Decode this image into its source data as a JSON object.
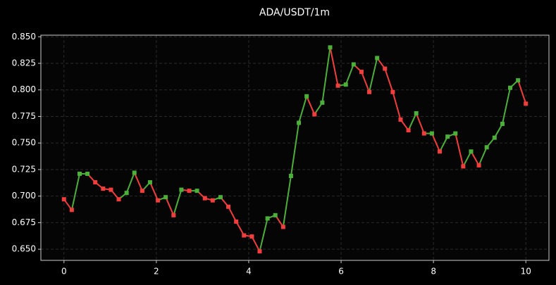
{
  "chart_data": {
    "type": "line",
    "title": "ADA/USDT/1m",
    "x": [
      0,
      0.169,
      0.339,
      0.508,
      0.678,
      0.847,
      1.017,
      1.186,
      1.356,
      1.525,
      1.695,
      1.864,
      2.034,
      2.203,
      2.373,
      2.542,
      2.712,
      2.881,
      3.051,
      3.22,
      3.39,
      3.559,
      3.729,
      3.898,
      4.068,
      4.237,
      4.407,
      4.576,
      4.746,
      4.915,
      5.085,
      5.254,
      5.424,
      5.593,
      5.763,
      5.932,
      6.102,
      6.271,
      6.441,
      6.61,
      6.78,
      6.949,
      7.119,
      7.288,
      7.458,
      7.627,
      7.797,
      7.966,
      8.136,
      8.305,
      8.475,
      8.644,
      8.814,
      8.983,
      9.153,
      9.322,
      9.492,
      9.661,
      9.831,
      10
    ],
    "values": [
      0.697,
      0.687,
      0.721,
      0.721,
      0.713,
      0.707,
      0.706,
      0.697,
      0.703,
      0.722,
      0.705,
      0.713,
      0.696,
      0.699,
      0.682,
      0.706,
      0.705,
      0.705,
      0.698,
      0.696,
      0.699,
      0.69,
      0.676,
      0.663,
      0.662,
      0.648,
      0.679,
      0.682,
      0.671,
      0.719,
      0.769,
      0.794,
      0.777,
      0.788,
      0.84,
      0.804,
      0.805,
      0.824,
      0.817,
      0.798,
      0.83,
      0.82,
      0.798,
      0.772,
      0.762,
      0.778,
      0.759,
      0.759,
      0.742,
      0.756,
      0.759,
      0.728,
      0.742,
      0.729,
      0.746,
      0.755,
      0.768,
      0.802,
      0.809,
      0.787
    ],
    "up_color": "#4caf3a",
    "down_color": "#f23d3d",
    "xlim": [
      -0.5,
      10.5
    ],
    "ylim": [
      0.6395,
      0.8515
    ],
    "xticks": [
      0,
      2,
      4,
      6,
      8,
      10
    ],
    "yticks": [
      {
        "value": 0.65,
        "label": "0.650"
      },
      {
        "value": 0.675,
        "label": "0.675"
      },
      {
        "value": 0.7,
        "label": "0.700"
      },
      {
        "value": 0.725,
        "label": "0.725"
      },
      {
        "value": 0.75,
        "label": "0.750"
      },
      {
        "value": 0.775,
        "label": "0.775"
      },
      {
        "value": 0.8,
        "label": "0.800"
      },
      {
        "value": 0.825,
        "label": "0.825"
      },
      {
        "value": 0.85,
        "label": "0.850"
      }
    ],
    "grid": true
  }
}
